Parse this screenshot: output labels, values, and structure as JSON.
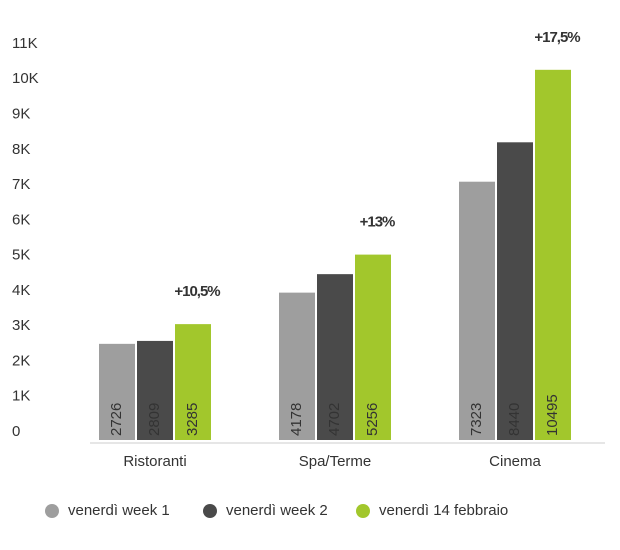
{
  "chart_data": {
    "type": "bar",
    "categories": [
      "Ristoranti",
      "Spa/Terme",
      "Cinema"
    ],
    "series": [
      {
        "name": "venerdì week 1",
        "color": "#9e9e9e",
        "values": [
          2726,
          4178,
          7323
        ]
      },
      {
        "name": "venerdì week 2",
        "color": "#4a4a4a",
        "values": [
          2809,
          4702,
          8440
        ]
      },
      {
        "name": "venerdì 14 febbraio",
        "color": "#a2c72c",
        "values": [
          3285,
          5256,
          10495
        ]
      }
    ],
    "annotations": [
      "+10,5%",
      "+13%",
      "+17,5%"
    ],
    "ylim": [
      0,
      11000
    ],
    "yticks": [
      0,
      {
        "value": 1000,
        "label": "1K"
      },
      {
        "value": 2000,
        "label": "2K"
      },
      {
        "value": 3000,
        "label": "3K"
      },
      {
        "value": 4000,
        "label": "4K"
      },
      {
        "value": 5000,
        "label": "5K"
      },
      {
        "value": 6000,
        "label": "6K"
      },
      {
        "value": 7000,
        "label": "7K"
      },
      {
        "value": 8000,
        "label": "8K"
      },
      {
        "value": 9000,
        "label": "9K"
      },
      {
        "value": 10000,
        "label": "10K"
      },
      {
        "value": 11000,
        "label": "11K"
      }
    ],
    "legend": "bottom"
  }
}
